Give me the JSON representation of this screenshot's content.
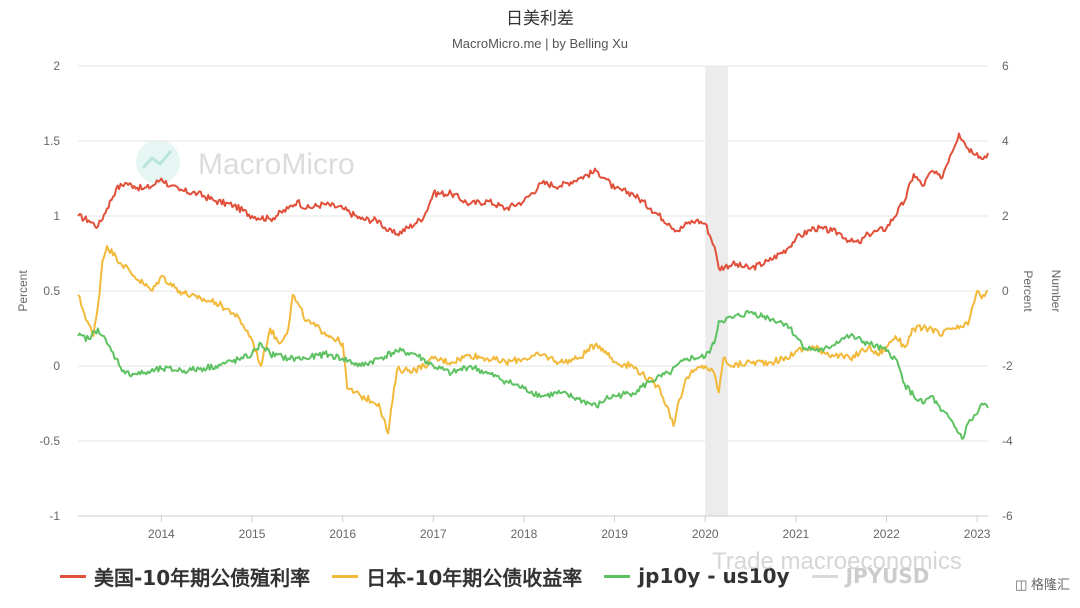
{
  "chart_data": {
    "type": "line",
    "title": "日美利差",
    "subtitle": "MacroMicro.me | by Belling Xu",
    "xlim": [
      2013.08,
      2023.12
    ],
    "x_ticks": [
      "2014",
      "2015",
      "2016",
      "2017",
      "2018",
      "2019",
      "2020",
      "2021",
      "2022",
      "2023"
    ],
    "y_left": {
      "label": "Percent",
      "ylim": [
        -1,
        2
      ],
      "ticks": [
        "2",
        "1.5",
        "1",
        "0.5",
        "0",
        "-0.5",
        "-1"
      ]
    },
    "y_right": {
      "label": "Number",
      "ylim": [
        -6,
        6
      ],
      "ticks": [
        "6",
        "4",
        "2",
        "0",
        "-2",
        "-4",
        "-6"
      ]
    },
    "grid": true,
    "legend_position": "bottom-left",
    "recession_band": [
      2020.0,
      2020.25
    ],
    "series": [
      {
        "name": "美国-10年期公债殖利率",
        "color": "#e0503a",
        "axis": "left",
        "points": [
          [
            2013.08,
            1.0
          ],
          [
            2013.2,
            0.97
          ],
          [
            2013.3,
            0.93
          ],
          [
            2013.4,
            1.05
          ],
          [
            2013.5,
            1.18
          ],
          [
            2013.6,
            1.22
          ],
          [
            2013.7,
            1.2
          ],
          [
            2013.8,
            1.18
          ],
          [
            2013.9,
            1.2
          ],
          [
            2014.0,
            1.25
          ],
          [
            2014.1,
            1.2
          ],
          [
            2014.2,
            1.17
          ],
          [
            2014.4,
            1.15
          ],
          [
            2014.6,
            1.1
          ],
          [
            2014.8,
            1.07
          ],
          [
            2015.0,
            1.0
          ],
          [
            2015.2,
            0.98
          ],
          [
            2015.4,
            1.05
          ],
          [
            2015.5,
            1.1
          ],
          [
            2015.6,
            1.05
          ],
          [
            2015.8,
            1.08
          ],
          [
            2016.0,
            1.05
          ],
          [
            2016.2,
            0.98
          ],
          [
            2016.4,
            0.97
          ],
          [
            2016.5,
            0.9
          ],
          [
            2016.6,
            0.88
          ],
          [
            2016.8,
            0.95
          ],
          [
            2016.9,
            1.0
          ],
          [
            2017.0,
            1.15
          ],
          [
            2017.2,
            1.15
          ],
          [
            2017.4,
            1.08
          ],
          [
            2017.6,
            1.1
          ],
          [
            2017.8,
            1.05
          ],
          [
            2018.0,
            1.1
          ],
          [
            2018.2,
            1.22
          ],
          [
            2018.4,
            1.2
          ],
          [
            2018.6,
            1.25
          ],
          [
            2018.8,
            1.3
          ],
          [
            2018.9,
            1.25
          ],
          [
            2019.0,
            1.18
          ],
          [
            2019.2,
            1.15
          ],
          [
            2019.4,
            1.05
          ],
          [
            2019.6,
            0.95
          ],
          [
            2019.7,
            0.9
          ],
          [
            2019.8,
            0.95
          ],
          [
            2019.9,
            0.97
          ],
          [
            2020.0,
            0.95
          ],
          [
            2020.1,
            0.8
          ],
          [
            2020.15,
            0.65
          ],
          [
            2020.3,
            0.68
          ],
          [
            2020.5,
            0.65
          ],
          [
            2020.7,
            0.7
          ],
          [
            2020.9,
            0.78
          ],
          [
            2021.0,
            0.85
          ],
          [
            2021.2,
            0.92
          ],
          [
            2021.4,
            0.9
          ],
          [
            2021.5,
            0.88
          ],
          [
            2021.6,
            0.83
          ],
          [
            2021.7,
            0.82
          ],
          [
            2021.8,
            0.88
          ],
          [
            2021.9,
            0.9
          ],
          [
            2022.0,
            0.92
          ],
          [
            2022.2,
            1.1
          ],
          [
            2022.3,
            1.28
          ],
          [
            2022.4,
            1.2
          ],
          [
            2022.5,
            1.3
          ],
          [
            2022.6,
            1.25
          ],
          [
            2022.7,
            1.4
          ],
          [
            2022.8,
            1.55
          ],
          [
            2022.85,
            1.5
          ],
          [
            2022.9,
            1.45
          ],
          [
            2023.0,
            1.42
          ],
          [
            2023.05,
            1.38
          ],
          [
            2023.12,
            1.42
          ]
        ]
      },
      {
        "name": "日本-10年期公债收益率",
        "color": "#f2b93b",
        "axis": "right",
        "points": [
          [
            2013.08,
            -0.1
          ],
          [
            2013.15,
            -0.6
          ],
          [
            2013.25,
            -1.2
          ],
          [
            2013.3,
            -0.4
          ],
          [
            2013.35,
            0.8
          ],
          [
            2013.4,
            1.2
          ],
          [
            2013.5,
            0.9
          ],
          [
            2013.7,
            0.4
          ],
          [
            2013.8,
            0.2
          ],
          [
            2013.9,
            0.0
          ],
          [
            2014.0,
            0.4
          ],
          [
            2014.2,
            0.0
          ],
          [
            2014.4,
            -0.2
          ],
          [
            2014.6,
            -0.3
          ],
          [
            2014.8,
            -0.6
          ],
          [
            2014.9,
            -0.9
          ],
          [
            2015.0,
            -1.3
          ],
          [
            2015.1,
            -2.0
          ],
          [
            2015.2,
            -1.0
          ],
          [
            2015.3,
            -1.4
          ],
          [
            2015.4,
            -1.0
          ],
          [
            2015.45,
            -0.1
          ],
          [
            2015.6,
            -0.8
          ],
          [
            2015.8,
            -1.1
          ],
          [
            2016.0,
            -1.4
          ],
          [
            2016.05,
            -2.6
          ],
          [
            2016.2,
            -2.8
          ],
          [
            2016.4,
            -3.0
          ],
          [
            2016.5,
            -3.8
          ],
          [
            2016.6,
            -2.1
          ],
          [
            2016.8,
            -2.1
          ],
          [
            2016.9,
            -2.0
          ],
          [
            2017.0,
            -1.8
          ],
          [
            2017.2,
            -1.9
          ],
          [
            2017.4,
            -1.7
          ],
          [
            2017.6,
            -1.8
          ],
          [
            2017.8,
            -1.9
          ],
          [
            2018.0,
            -1.8
          ],
          [
            2018.2,
            -1.7
          ],
          [
            2018.4,
            -1.9
          ],
          [
            2018.6,
            -1.8
          ],
          [
            2018.8,
            -1.4
          ],
          [
            2018.9,
            -1.6
          ],
          [
            2019.0,
            -1.9
          ],
          [
            2019.2,
            -2.0
          ],
          [
            2019.3,
            -2.2
          ],
          [
            2019.5,
            -2.6
          ],
          [
            2019.6,
            -3.2
          ],
          [
            2019.65,
            -3.6
          ],
          [
            2019.7,
            -3.0
          ],
          [
            2019.8,
            -2.3
          ],
          [
            2019.9,
            -2.1
          ],
          [
            2020.0,
            -2.0
          ],
          [
            2020.1,
            -2.2
          ],
          [
            2020.15,
            -2.7
          ],
          [
            2020.2,
            -1.8
          ],
          [
            2020.3,
            -2.0
          ],
          [
            2020.5,
            -1.9
          ],
          [
            2020.7,
            -1.9
          ],
          [
            2020.9,
            -1.8
          ],
          [
            2021.0,
            -1.6
          ],
          [
            2021.2,
            -1.5
          ],
          [
            2021.4,
            -1.7
          ],
          [
            2021.6,
            -1.8
          ],
          [
            2021.8,
            -1.5
          ],
          [
            2021.9,
            -1.7
          ],
          [
            2022.0,
            -1.5
          ],
          [
            2022.1,
            -1.2
          ],
          [
            2022.2,
            -1.5
          ],
          [
            2022.3,
            -1.0
          ],
          [
            2022.5,
            -1.0
          ],
          [
            2022.6,
            -1.2
          ],
          [
            2022.7,
            -1.0
          ],
          [
            2022.8,
            -1.0
          ],
          [
            2022.9,
            -0.9
          ],
          [
            2022.95,
            -0.4
          ],
          [
            2023.0,
            0.0
          ],
          [
            2023.05,
            -0.2
          ],
          [
            2023.12,
            0.0
          ]
        ]
      },
      {
        "name": "jp10y - us10y",
        "color": "#5ec262",
        "axis": "left",
        "points": [
          [
            2013.08,
            0.2
          ],
          [
            2013.2,
            0.18
          ],
          [
            2013.3,
            0.25
          ],
          [
            2013.4,
            0.15
          ],
          [
            2013.5,
            0.05
          ],
          [
            2013.6,
            -0.05
          ],
          [
            2013.8,
            -0.05
          ],
          [
            2014.0,
            -0.02
          ],
          [
            2014.3,
            -0.03
          ],
          [
            2014.6,
            0.0
          ],
          [
            2014.9,
            0.05
          ],
          [
            2015.0,
            0.08
          ],
          [
            2015.1,
            0.15
          ],
          [
            2015.2,
            0.08
          ],
          [
            2015.4,
            0.05
          ],
          [
            2015.6,
            0.05
          ],
          [
            2015.8,
            0.08
          ],
          [
            2016.0,
            0.05
          ],
          [
            2016.2,
            0.0
          ],
          [
            2016.4,
            0.05
          ],
          [
            2016.6,
            0.1
          ],
          [
            2016.8,
            0.08
          ],
          [
            2017.0,
            0.0
          ],
          [
            2017.2,
            -0.05
          ],
          [
            2017.4,
            0.0
          ],
          [
            2017.6,
            -0.05
          ],
          [
            2017.8,
            -0.1
          ],
          [
            2018.0,
            -0.15
          ],
          [
            2018.2,
            -0.2
          ],
          [
            2018.4,
            -0.18
          ],
          [
            2018.6,
            -0.22
          ],
          [
            2018.8,
            -0.27
          ],
          [
            2018.9,
            -0.22
          ],
          [
            2019.0,
            -0.2
          ],
          [
            2019.2,
            -0.18
          ],
          [
            2019.4,
            -0.1
          ],
          [
            2019.6,
            -0.05
          ],
          [
            2019.8,
            0.05
          ],
          [
            2020.0,
            0.06
          ],
          [
            2020.1,
            0.15
          ],
          [
            2020.15,
            0.3
          ],
          [
            2020.3,
            0.32
          ],
          [
            2020.5,
            0.36
          ],
          [
            2020.7,
            0.32
          ],
          [
            2020.9,
            0.28
          ],
          [
            2021.0,
            0.2
          ],
          [
            2021.1,
            0.12
          ],
          [
            2021.3,
            0.1
          ],
          [
            2021.5,
            0.18
          ],
          [
            2021.6,
            0.2
          ],
          [
            2021.8,
            0.15
          ],
          [
            2022.0,
            0.1
          ],
          [
            2022.1,
            0.05
          ],
          [
            2022.2,
            -0.12
          ],
          [
            2022.3,
            -0.2
          ],
          [
            2022.4,
            -0.25
          ],
          [
            2022.5,
            -0.2
          ],
          [
            2022.6,
            -0.3
          ],
          [
            2022.7,
            -0.35
          ],
          [
            2022.8,
            -0.45
          ],
          [
            2022.85,
            -0.48
          ],
          [
            2022.9,
            -0.38
          ],
          [
            2023.0,
            -0.32
          ],
          [
            2023.05,
            -0.25
          ],
          [
            2023.12,
            -0.28
          ]
        ]
      },
      {
        "name": "JPYUSD",
        "color": "#d9d9d9",
        "axis": "right",
        "visible": false,
        "points": []
      }
    ]
  },
  "watermark": {
    "text": "MacroMicro",
    "icon": "macromicro-logo-icon"
  },
  "overlay_watermark": "Trade macroeconomics",
  "credit": {
    "icon": "gelonghui-logo-icon",
    "text": "格隆汇"
  }
}
